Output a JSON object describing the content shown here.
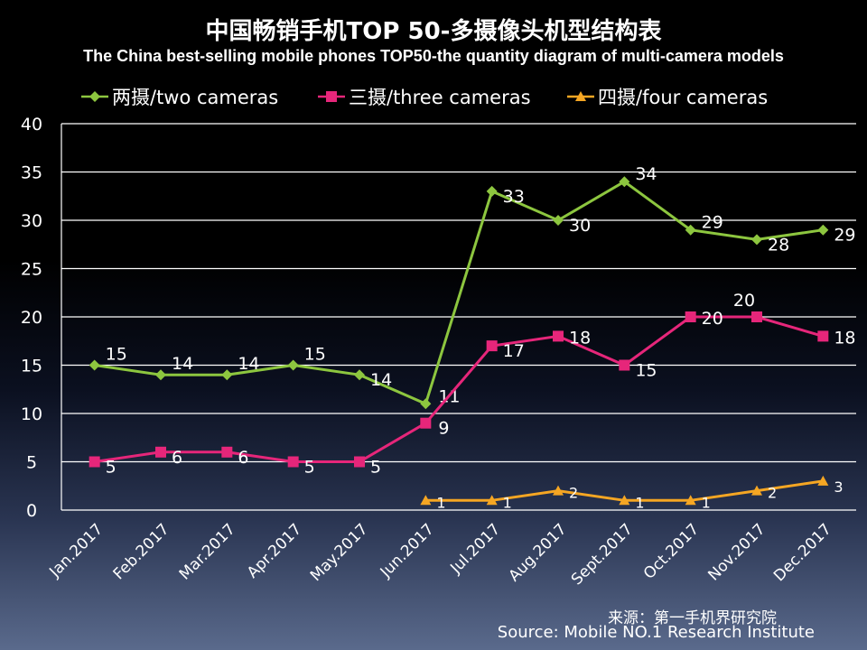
{
  "title_cn": "中国畅销手机TOP 50-多摄像头机型结构表",
  "title_en": "The China best-selling mobile phones TOP50-the quantity diagram of multi-camera models",
  "source_cn": "来源：第一手机界研究院",
  "source_en": "Source: Mobile NO.1 Research Institute",
  "chart_data": {
    "type": "line",
    "title": "中国畅销手机TOP 50-多摄像头机型结构表",
    "xlabel": "",
    "ylabel": "",
    "ylim": [
      0,
      40
    ],
    "yticks": [
      0,
      5,
      10,
      15,
      20,
      25,
      30,
      35,
      40
    ],
    "grid": true,
    "legend_position": "top",
    "categories": [
      "Jan.2017",
      "Feb.2017",
      "Mar.2017",
      "Apr.2017",
      "May.2017",
      "Jun.2017",
      "Jul.2017",
      "Aug.2017",
      "Sept.2017",
      "Oct.2017",
      "Nov.2017",
      "Dec.2017"
    ],
    "series": [
      {
        "name": "两摄/two cameras",
        "color": "#8dc63f",
        "marker": "diamond",
        "values": [
          15,
          14,
          14,
          15,
          14,
          11,
          33,
          30,
          34,
          29,
          28,
          29
        ]
      },
      {
        "name": "三摄/three cameras",
        "color": "#e6267a",
        "marker": "square",
        "values": [
          5,
          6,
          6,
          5,
          5,
          9,
          17,
          18,
          15,
          20,
          20,
          18
        ]
      },
      {
        "name": "四摄/four cameras",
        "color": "#f5a623",
        "marker": "triangle",
        "values": [
          null,
          null,
          null,
          null,
          null,
          1,
          1,
          2,
          1,
          1,
          2,
          3
        ]
      }
    ]
  }
}
